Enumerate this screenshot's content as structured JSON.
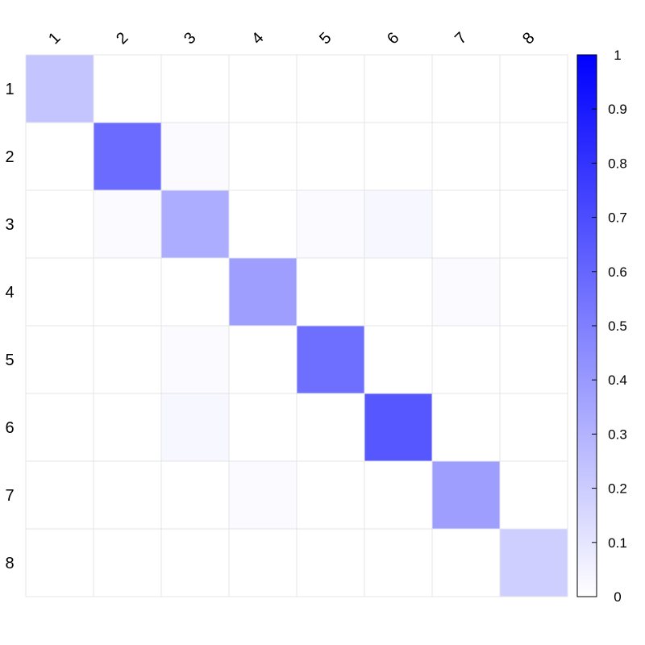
{
  "chart_data": {
    "type": "heatmap",
    "row_labels": [
      "1",
      "2",
      "3",
      "4",
      "5",
      "6",
      "7",
      "8"
    ],
    "col_labels": [
      "1",
      "2",
      "3",
      "4",
      "5",
      "6",
      "7",
      "8"
    ],
    "matrix": [
      [
        0.23,
        0,
        0,
        0,
        0,
        0,
        0,
        0
      ],
      [
        0,
        0.58,
        0.02,
        0,
        0,
        0,
        0,
        0
      ],
      [
        0,
        0.02,
        0.32,
        0,
        0.02,
        0.03,
        0,
        0
      ],
      [
        0,
        0,
        0,
        0.38,
        0,
        0,
        0.02,
        0
      ],
      [
        0,
        0,
        0.02,
        0,
        0.57,
        0,
        0,
        0
      ],
      [
        0,
        0,
        0.03,
        0,
        0,
        0.66,
        0,
        0
      ],
      [
        0,
        0,
        0,
        0.02,
        0,
        0,
        0.38,
        0
      ],
      [
        0,
        0,
        0,
        0,
        0,
        0,
        0,
        0.19
      ]
    ],
    "color_scale": {
      "min": 0,
      "max": 1,
      "min_color": "#ffffff",
      "max_color": "#0000ff"
    },
    "colorbar_ticks": [
      "0",
      "0.1",
      "0.2",
      "0.3",
      "0.4",
      "0.5",
      "0.6",
      "0.7",
      "0.8",
      "0.9",
      "1"
    ],
    "grid": true,
    "legend_placement": "right"
  }
}
